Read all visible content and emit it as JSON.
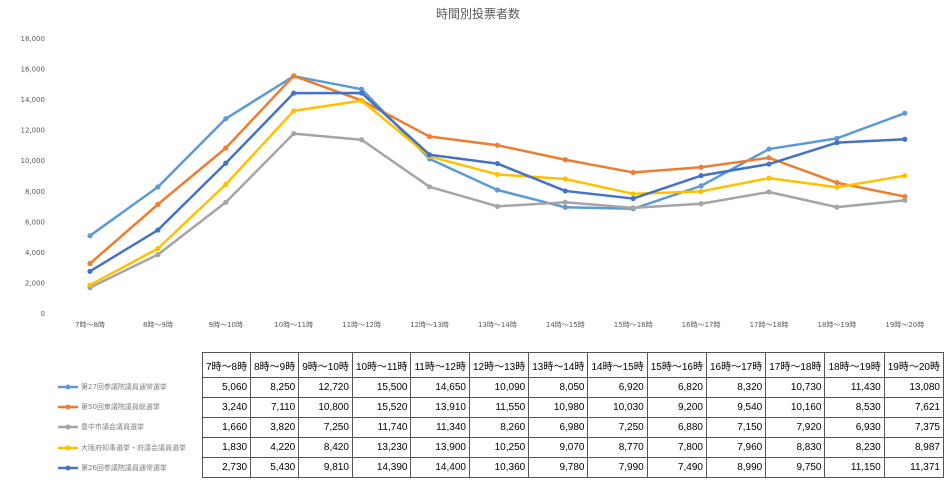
{
  "chart_data": {
    "type": "line",
    "title": "時間別投票者数",
    "xlabel": "",
    "ylabel": "",
    "ylim": [
      0,
      18000
    ],
    "yticks": [
      "0",
      "2,000",
      "4,000",
      "6,000",
      "8,000",
      "10,000",
      "12,000",
      "14,000",
      "16,000",
      "18,000"
    ],
    "categories": [
      "7時～8時",
      "8時～9時",
      "9時～10時",
      "10時～11時",
      "11時～12時",
      "12時～13時",
      "13時～14時",
      "14時～15時",
      "15時～16時",
      "16時～17時",
      "17時～18時",
      "18時～19時",
      "19時～20時"
    ],
    "legend_position": "bottom-left",
    "series": [
      {
        "name": "第27回参議院議員通常選挙",
        "color": "#5B9BD5",
        "values": [
          5060,
          8250,
          12720,
          15500,
          14650,
          10090,
          8050,
          6920,
          6820,
          8320,
          10730,
          11430,
          13080
        ],
        "labels": [
          "5,060",
          "8,250",
          "12,720",
          "15,500",
          "14,650",
          "10,090",
          "8,050",
          "6,920",
          "6,820",
          "8,320",
          "10,730",
          "11,430",
          "13,080"
        ]
      },
      {
        "name": "第50回衆議院議員総選挙",
        "color": "#ED7D31",
        "values": [
          3240,
          7110,
          10800,
          15520,
          13910,
          11550,
          10980,
          10030,
          9200,
          9540,
          10160,
          8530,
          7621
        ],
        "labels": [
          "3,240",
          "7,110",
          "10,800",
          "15,520",
          "13,910",
          "11,550",
          "10,980",
          "10,030",
          "9,200",
          "9,540",
          "10,160",
          "8,530",
          "7,621"
        ]
      },
      {
        "name": "豊中市議会議員選挙",
        "color": "#A5A5A5",
        "values": [
          1660,
          3820,
          7250,
          11740,
          11340,
          8260,
          6980,
          7250,
          6880,
          7150,
          7920,
          6930,
          7375
        ],
        "labels": [
          "1,660",
          "3,820",
          "7,250",
          "11,740",
          "11,340",
          "8,260",
          "6,980",
          "7,250",
          "6,880",
          "7,150",
          "7,920",
          "6,930",
          "7,375"
        ]
      },
      {
        "name": "大阪府知事選挙・府議会議員選挙",
        "color": "#FFC000",
        "values": [
          1830,
          4220,
          8420,
          13230,
          13900,
          10250,
          9070,
          8770,
          7800,
          7960,
          8830,
          8230,
          8987
        ],
        "labels": [
          "1,830",
          "4,220",
          "8,420",
          "13,230",
          "13,900",
          "10,250",
          "9,070",
          "8,770",
          "7,800",
          "7,960",
          "8,830",
          "8,230",
          "8,987"
        ]
      },
      {
        "name": "第26回参議院議員通常選挙",
        "color": "#4472C4",
        "values": [
          2730,
          5430,
          9810,
          14390,
          14400,
          10360,
          9780,
          7990,
          7490,
          8990,
          9750,
          11150,
          11371
        ],
        "labels": [
          "2,730",
          "5,430",
          "9,810",
          "14,390",
          "14,400",
          "10,360",
          "9,780",
          "7,990",
          "7,490",
          "8,990",
          "9,750",
          "11,150",
          "11,371"
        ]
      }
    ]
  }
}
